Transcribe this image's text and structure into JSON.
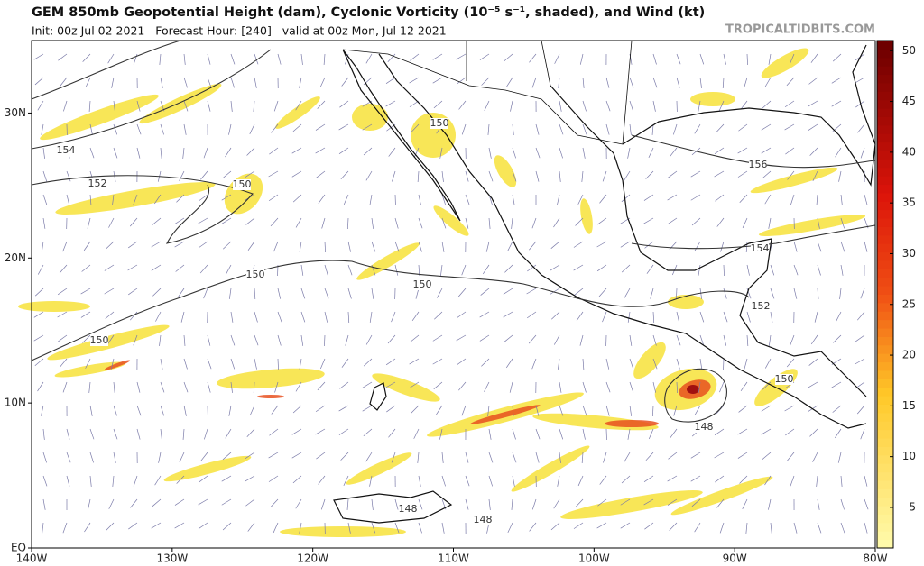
{
  "header": {
    "title": "GEM 850mb Geopotential Height (dam), Cyclonic Vorticity (10⁻⁵ s⁻¹, shaded), and Wind (kt)",
    "subtitle": "Init: 00z Jul 02 2021   Forecast Hour: [240]   valid at 00z Mon, Jul 12 2021",
    "watermark": "TROPICALTIDBITS.COM"
  },
  "map": {
    "lonlim": [
      -140,
      -80
    ],
    "lonticks": [
      {
        "value": -140,
        "label": "140W"
      },
      {
        "value": -130,
        "label": "130W"
      },
      {
        "value": -120,
        "label": "120W"
      },
      {
        "value": -110,
        "label": "110W"
      },
      {
        "value": -100,
        "label": "100W"
      },
      {
        "value": -90,
        "label": "90W"
      },
      {
        "value": -80,
        "label": "80W"
      }
    ],
    "latlim": [
      0,
      35
    ],
    "latticks": [
      {
        "value": 0,
        "label": "EQ"
      },
      {
        "value": 10,
        "label": "10N"
      },
      {
        "value": 20,
        "label": "20N"
      },
      {
        "value": 30,
        "label": "30N"
      }
    ],
    "contour_labels": [
      "154",
      "152",
      "150",
      "150",
      "150",
      "150",
      "150",
      "156",
      "154",
      "152",
      "150",
      "148",
      "148",
      "148"
    ]
  },
  "colorbar": {
    "lim": [
      1,
      51
    ],
    "ticks": [
      5,
      10,
      15,
      20,
      25,
      30,
      35,
      40,
      45,
      50
    ]
  }
}
